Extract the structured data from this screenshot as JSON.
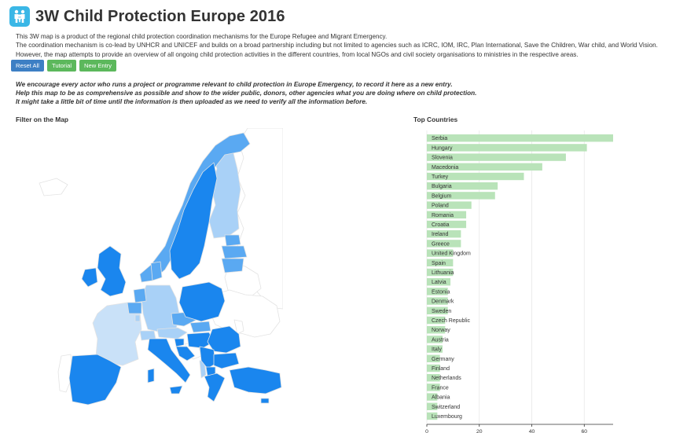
{
  "header": {
    "title": "3W Child Protection Europe 2016",
    "logo_icon": "family-icon"
  },
  "intro": {
    "line1": "This 3W map is a product of the regional child protection coordination mechanisms for the Europe Refugee and Migrant Emergency.",
    "line2": "The coordination mechanism is co-lead by UNHCR and UNICEF and builds on a broad partnership including but not limited to agencies such as ICRC, IOM, IRC, Plan International, Save the Children, War child, and World Vision.",
    "line3": "However, the map attempts to provide an overview of all ongoing child protection activities in the different countries, from local NGOs and civil society organisations to ministries in the respective areas."
  },
  "buttons": {
    "reset": "Reset All",
    "tutorial": "Tutorial",
    "new_entry": "New Entry"
  },
  "encourage": {
    "line1": "We encourage every actor who runs a project or programme relevant to child protection in Europe Emergency, to record it here as a new entry.",
    "line2": "Help this map to be as comprehensive as possible and show to the wider public, donors, other agencies what you are doing where on child protection.",
    "line3": "It might take a little bit of time until the information is then uploaded as we need to verify all the information before."
  },
  "map": {
    "title": "Filter on the Map"
  },
  "colors": {
    "map_dark": "#1a86ee",
    "map_mid": "#5aa9f2",
    "map_light": "#a9d1f7",
    "map_none": "#ffffff",
    "bar": "#b9e3b9"
  },
  "chart_data": {
    "type": "bar",
    "title": "Top Countries",
    "orientation": "horizontal",
    "categories": [
      "Serbia",
      "Hungary",
      "Slovenia",
      "Macedonia",
      "Turkey",
      "Bulgaria",
      "Belgium",
      "Poland",
      "Romania",
      "Croatia",
      "Ireland",
      "Greece",
      "United Kingdom",
      "Spain",
      "Lithuania",
      "Latvia",
      "Estonia",
      "Denmark",
      "Sweden",
      "Czech Republic",
      "Norway",
      "Austria",
      "Italy",
      "Germany",
      "Finland",
      "Netherlands",
      "France",
      "Albania",
      "Switzerland",
      "Luxembourg"
    ],
    "values": [
      71,
      61,
      53,
      44,
      37,
      27,
      26,
      17,
      15,
      15,
      13,
      13,
      10,
      10,
      10,
      9,
      8,
      8,
      8,
      7,
      7,
      6,
      6,
      5,
      5,
      5,
      5,
      4,
      4,
      4
    ],
    "x_ticks": [
      0,
      20,
      40,
      60
    ],
    "xlim": [
      0,
      71
    ],
    "grid": true
  }
}
